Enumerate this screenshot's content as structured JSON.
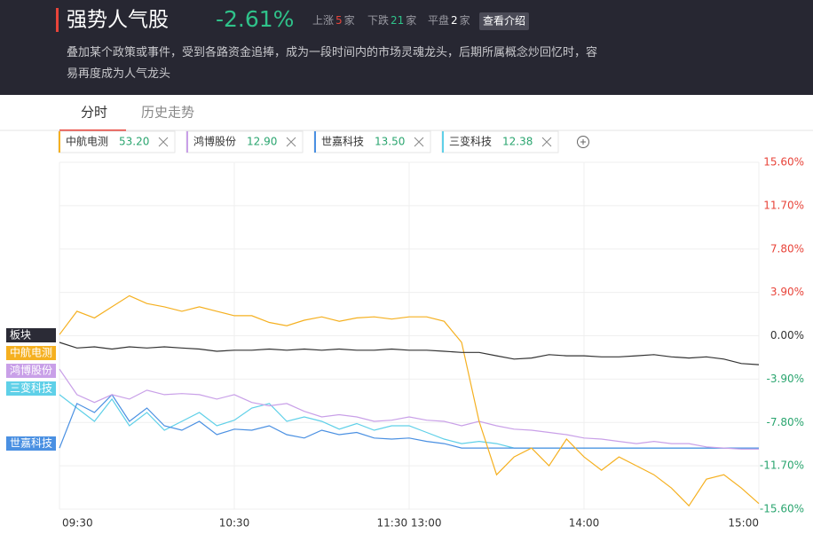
{
  "header": {
    "title": "强势人气股",
    "change": "-2.61%",
    "stats": [
      {
        "label": "上涨",
        "count": 5,
        "unit": "家"
      },
      {
        "label": "下跌",
        "count": 21,
        "unit": "家"
      },
      {
        "label": "平盘",
        "count": 2,
        "unit": "家"
      }
    ],
    "button": "查看介绍",
    "description": "叠加某个政策或事件，受到各路资金追捧，成为一段时间内的市场灵魂龙头，后期所属概念炒回忆时，容易再度成为人气龙头"
  },
  "tabs": [
    "分时",
    "历史走势"
  ],
  "chart_data": {
    "type": "line",
    "x": [
      0,
      6,
      12,
      18,
      24,
      30,
      36,
      42,
      48,
      54,
      60,
      66,
      72,
      78,
      84,
      90,
      96,
      102,
      108,
      114,
      120,
      126,
      132,
      138,
      144,
      150,
      156,
      162,
      168,
      174,
      180,
      186,
      192,
      198,
      204,
      210,
      216,
      222,
      228,
      234,
      240
    ],
    "xlim": [
      0,
      240
    ],
    "xticks": [
      {
        "value": 0,
        "label": "09:30"
      },
      {
        "value": 60,
        "label": "10:30"
      },
      {
        "value": 120,
        "label": "11:30 13:00"
      },
      {
        "value": 180,
        "label": "14:00"
      },
      {
        "value": 240,
        "label": "15:00"
      }
    ],
    "ylim": [
      -15.6,
      15.6
    ],
    "yticks": [
      {
        "value": 15.6,
        "label": "15.60%"
      },
      {
        "value": 11.7,
        "label": "11.70%"
      },
      {
        "value": 7.8,
        "label": "7.80%"
      },
      {
        "value": 3.9,
        "label": "3.90%"
      },
      {
        "value": 0,
        "label": "0.00%"
      },
      {
        "value": -3.9,
        "label": "-3.90%"
      },
      {
        "value": -7.8,
        "label": "-7.80%"
      },
      {
        "value": -11.7,
        "label": "-11.70%"
      },
      {
        "value": -15.6,
        "label": "-15.60%"
      }
    ],
    "grid": true,
    "series": [
      {
        "name": "板块",
        "color": "#333333",
        "values": [
          -0.6,
          -1.1,
          -1.0,
          -1.2,
          -1.0,
          -1.1,
          -1.0,
          -1.1,
          -1.2,
          -1.4,
          -1.3,
          -1.3,
          -1.2,
          -1.3,
          -1.2,
          -1.3,
          -1.2,
          -1.3,
          -1.3,
          -1.2,
          -1.3,
          -1.3,
          -1.4,
          -1.5,
          -1.5,
          -1.8,
          -2.1,
          -2.0,
          -1.7,
          -1.8,
          -1.8,
          -1.9,
          -1.9,
          -1.8,
          -1.7,
          -1.9,
          -2.0,
          -1.9,
          -2.1,
          -2.5,
          -2.6
        ]
      },
      {
        "name": "中航电测",
        "price": "53.20",
        "color": "#f5b020",
        "values": [
          0.1,
          2.2,
          1.6,
          2.6,
          3.6,
          2.9,
          2.6,
          2.2,
          2.6,
          2.2,
          1.8,
          1.8,
          1.2,
          0.9,
          1.4,
          1.7,
          1.3,
          1.6,
          1.7,
          1.5,
          1.7,
          1.7,
          1.3,
          -0.6,
          -7.7,
          -12.5,
          -10.9,
          -10.1,
          -11.7,
          -9.3,
          -10.9,
          -12.1,
          -10.9,
          -11.7,
          -12.5,
          -13.7,
          -15.3,
          -12.9,
          -12.5,
          -13.7,
          -15.1
        ]
      },
      {
        "name": "鸿博股份",
        "price": "12.90",
        "color": "#c9a0e8",
        "values": [
          -3.0,
          -5.3,
          -6.0,
          -5.3,
          -5.7,
          -4.9,
          -5.3,
          -5.2,
          -5.3,
          -5.7,
          -5.3,
          -6.0,
          -6.3,
          -6.1,
          -6.8,
          -7.3,
          -7.1,
          -7.3,
          -7.7,
          -7.6,
          -7.3,
          -7.6,
          -7.7,
          -8.1,
          -7.7,
          -8.1,
          -8.4,
          -8.5,
          -8.7,
          -8.9,
          -9.2,
          -9.3,
          -9.5,
          -9.7,
          -9.5,
          -9.7,
          -9.7,
          -10.0,
          -10.1,
          -10.2,
          -10.2
        ]
      },
      {
        "name": "世嘉科技",
        "price": "13.50",
        "color": "#4a90e2",
        "values": [
          -10.1,
          -6.1,
          -6.9,
          -5.3,
          -7.7,
          -6.5,
          -8.1,
          -8.5,
          -7.7,
          -8.9,
          -8.4,
          -8.5,
          -8.1,
          -8.9,
          -9.2,
          -8.5,
          -8.9,
          -8.7,
          -9.2,
          -9.3,
          -9.2,
          -9.5,
          -9.7,
          -10.1,
          -10.1,
          -10.1,
          -10.1,
          -10.1,
          -10.1,
          -10.1,
          -10.1,
          -10.1,
          -10.1,
          -10.1,
          -10.1,
          -10.1,
          -10.1,
          -10.1,
          -10.1,
          -10.1,
          -10.1
        ]
      },
      {
        "name": "三变科技",
        "price": "12.38",
        "color": "#5fd0e8",
        "values": [
          -5.3,
          -6.5,
          -7.7,
          -5.7,
          -8.1,
          -6.9,
          -8.5,
          -7.7,
          -6.9,
          -8.1,
          -7.6,
          -6.5,
          -6.1,
          -7.7,
          -7.3,
          -7.7,
          -8.4,
          -7.9,
          -8.5,
          -8.1,
          -8.1,
          -8.7,
          -9.3,
          -9.7,
          -9.5,
          -9.7,
          -10.1,
          -10.1,
          -10.1,
          -10.1,
          -10.1,
          -10.1,
          -10.1,
          -10.1,
          -10.1,
          -10.1,
          -10.1,
          -10.1,
          -10.1,
          -10.1,
          -10.1
        ]
      }
    ]
  }
}
